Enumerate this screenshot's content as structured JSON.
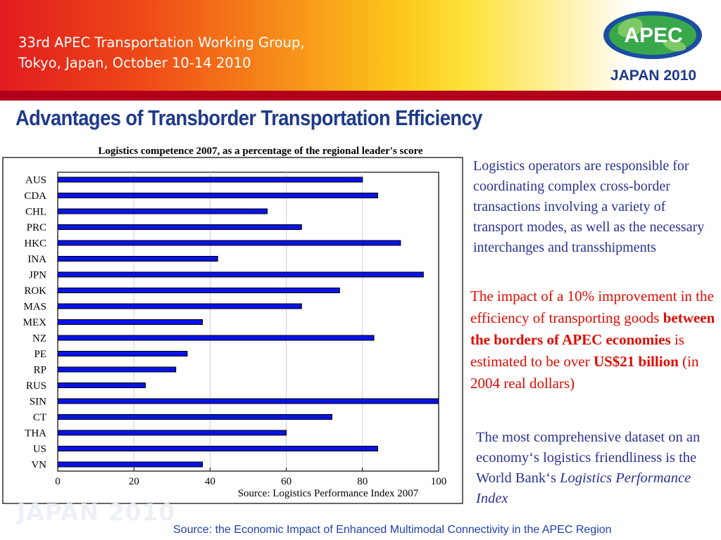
{
  "header": {
    "line1": "33rd APEC Transportation Working Group,",
    "line2": "Tokyo, Japan, October 10-14 2010",
    "logo_text": "APEC",
    "logo_subtitle": "JAPAN 2010"
  },
  "slide": {
    "title": "Advantages of Transborder Transportation Efficiency"
  },
  "chart_data": {
    "type": "bar",
    "orientation": "horizontal",
    "title": "Logistics competence 2007, as a percentage of the regional leader's score",
    "source_note": "Source: Logistics Performance Index 2007",
    "categories": [
      "AUS",
      "CDA",
      "CHL",
      "PRC",
      "HKC",
      "INA",
      "JPN",
      "ROK",
      "MAS",
      "MEX",
      "NZ",
      "PE",
      "RP",
      "RUS",
      "SIN",
      "CT",
      "THA",
      "US",
      "VN"
    ],
    "values": [
      80,
      84,
      55,
      64,
      90,
      42,
      96,
      74,
      64,
      38,
      83,
      34,
      31,
      23,
      100,
      72,
      60,
      84,
      38
    ],
    "xlim": [
      0,
      100
    ],
    "xticks": [
      "0",
      "20",
      "40",
      "60",
      "80",
      "100"
    ],
    "grid": "vertical",
    "bar_color": "#0a12e6"
  },
  "text": {
    "p1": "Logistics operators are responsible for coordinating complex cross-border transactions involving a variety of transport modes, as well as the necessary interchanges and transshipments",
    "p2_a": "The impact of a 10% improvement in the efficiency of transporting goods ",
    "p2_b": "between the borders of APEC economies",
    "p2_c": " is estimated to be over ",
    "p2_d": "US$21 billion",
    "p2_e": " (in 2004 real dollars)",
    "p3_a": "The most comprehensive dataset on an economy‘s logistics friendliness is the World Bank‘s ",
    "p3_b": "Logistics Performance Index"
  },
  "footer": {
    "watermark": "JAPAN 2010",
    "source": "Source: the Economic Impact of Enhanced Multimodal Connectivity in the APEC Region"
  }
}
